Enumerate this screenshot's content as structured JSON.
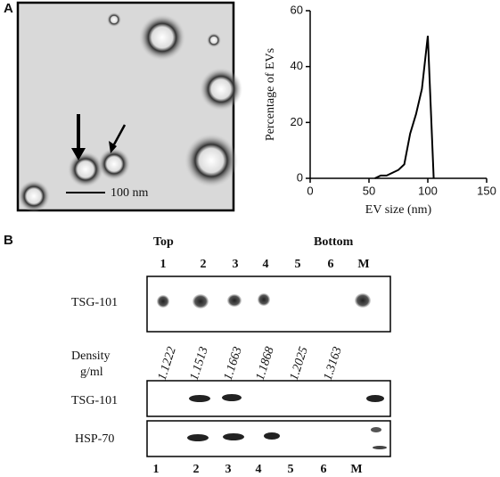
{
  "panel_a": {
    "label": "A",
    "scale_bar": "100 nm"
  },
  "chart_data": {
    "type": "line",
    "x_label": "EV size (nm)",
    "y_label": "Percentage of EVs",
    "x": [
      55,
      60,
      65,
      70,
      75,
      80,
      85,
      90,
      95,
      100,
      105
    ],
    "series": [
      {
        "color": "#000000",
        "values": [
          0,
          1,
          1,
          2,
          3,
          5,
          16,
          23,
          32,
          51,
          0
        ]
      }
    ],
    "xlim": [
      0,
      150
    ],
    "xticks": [
      0,
      50,
      100,
      150
    ],
    "ylim": [
      0,
      60
    ],
    "yticks": [
      0,
      20,
      40,
      60
    ]
  },
  "panel_b": {
    "label": "B",
    "top": "Top",
    "bottom": "Bottom",
    "lanes_top": [
      "1",
      "2",
      "3",
      "4",
      "5",
      "6",
      "M"
    ],
    "blot1_label": "TSG-101",
    "density_label": [
      "Density",
      "g/ml"
    ],
    "densities": [
      "1.1222",
      "1.1513",
      "1.1663",
      "1.1868",
      "1.2025",
      "1.3163"
    ],
    "blot2_label": "TSG-101",
    "blot3_label": "HSP-70",
    "lanes_bottom": [
      "1",
      "2",
      "3",
      "4",
      "5",
      "6",
      "M"
    ]
  }
}
